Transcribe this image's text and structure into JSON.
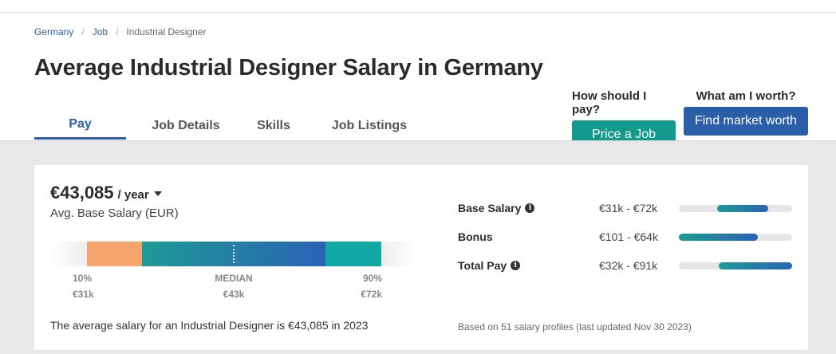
{
  "breadcrumb": {
    "items": [
      "Germany",
      "Job",
      "Industrial Designer"
    ],
    "separator": "/"
  },
  "page_title": "Average Industrial Designer Salary in Germany",
  "tabs": [
    {
      "label": "Pay",
      "active": true
    },
    {
      "label": "Job Details",
      "active": false
    },
    {
      "label": "Skills",
      "active": false
    },
    {
      "label": "Job Listings",
      "active": false
    }
  ],
  "cta": {
    "price_question": "How should I pay?",
    "price_button": "Price a Job",
    "market_question": "What am I worth?",
    "market_button": "Find market worth"
  },
  "salary": {
    "amount": "€43,085",
    "period": "/ year",
    "subtitle": "Avg. Base Salary (EUR)"
  },
  "range": {
    "p10_label": "10%",
    "p10_value": "€31k",
    "median_label": "MEDIAN",
    "median_value": "€43k",
    "p90_label": "90%",
    "p90_value": "€72k"
  },
  "summary": "The average salary for an Industrial Designer is €43,085 in 2023",
  "breakdown": [
    {
      "name": "Base Salary",
      "info": true,
      "range": "€31k - €72k",
      "fill_start": 0.34,
      "fill_end": 0.79
    },
    {
      "name": "Bonus",
      "info": false,
      "range": "€101 - €64k",
      "fill_start": 0.0,
      "fill_end": 0.7
    },
    {
      "name": "Total Pay",
      "info": true,
      "range": "€32k - €91k",
      "fill_start": 0.35,
      "fill_end": 1.0
    }
  ],
  "based_on": "Based on 51 salary profiles (last updated Nov 30 2023)",
  "colors": {
    "brand_blue": "#2a5ea8",
    "teal": "#13998e",
    "orange": "#f6a46e"
  }
}
